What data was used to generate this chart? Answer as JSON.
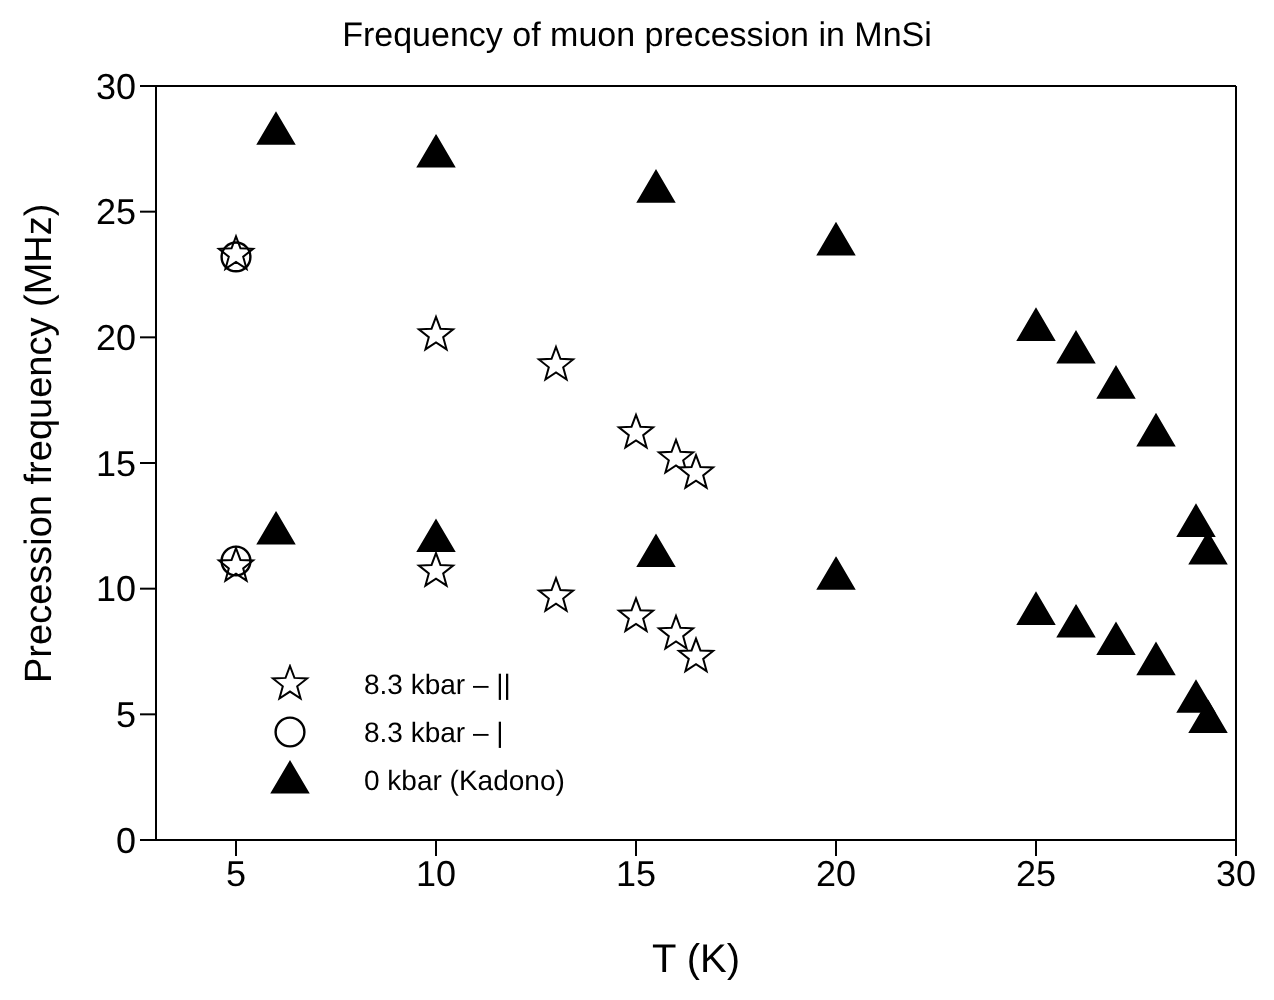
{
  "chart_data": {
    "type": "scatter",
    "title": "Frequency of muon precession in MnSi",
    "xlabel": "T (K)",
    "ylabel": "Precession frequency (MHz)",
    "xlim": [
      3,
      30
    ],
    "xticks": [
      5,
      10,
      15,
      20,
      25,
      30
    ],
    "ylim": [
      0,
      30
    ],
    "yticks": [
      0,
      5,
      10,
      15,
      20,
      25,
      30
    ],
    "grid": false,
    "legend": "bottom left",
    "series": [
      {
        "name": "8.3 kbar – ||",
        "color": "#000000",
        "marker": "star",
        "x": [
          5,
          10,
          13,
          15,
          16,
          16.5,
          5,
          10,
          13,
          15,
          16,
          16.5
        ],
        "values": [
          23.3,
          20.1,
          18.9,
          16.2,
          15.2,
          14.6,
          10.9,
          10.7,
          9.7,
          8.9,
          8.2,
          7.3
        ]
      },
      {
        "name": "8.3 kbar – |",
        "color": "#000000",
        "marker": "circle",
        "x": [
          5,
          5
        ],
        "values": [
          23.2,
          11.1
        ]
      },
      {
        "name": "0 kbar (Kadono)",
        "color": "#000000",
        "marker": "triangle",
        "x": [
          6,
          10,
          15.5,
          20,
          25,
          26,
          27,
          28,
          29,
          29.3,
          6,
          10,
          15.5,
          20,
          25,
          26,
          27,
          28,
          29,
          29.3
        ],
        "values": [
          28.2,
          27.3,
          25.9,
          23.8,
          20.4,
          19.5,
          18.1,
          16.2,
          12.6,
          11.5,
          12.3,
          12.0,
          11.4,
          10.5,
          9.1,
          8.6,
          7.9,
          7.1,
          5.6,
          4.8
        ]
      }
    ]
  }
}
